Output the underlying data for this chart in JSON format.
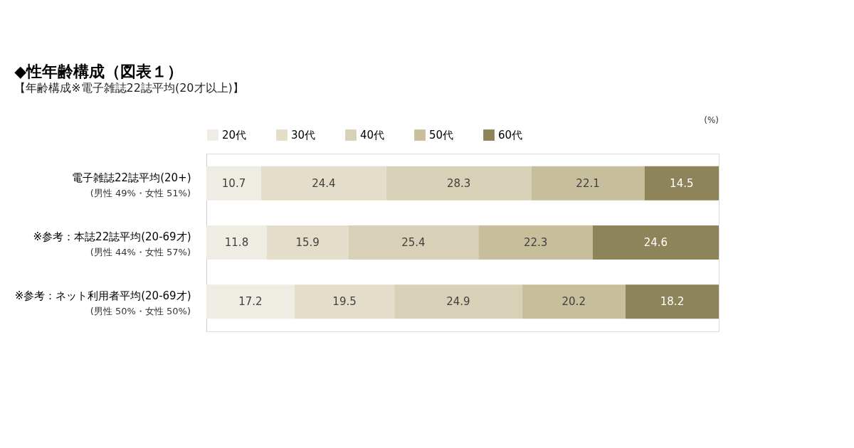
{
  "chart_data": {
    "type": "bar",
    "orientation": "horizontal",
    "stacked": true,
    "data_labels": true,
    "tick_labels": "y",
    "legend": "top",
    "title": "◆性年齢構成（図表１）",
    "subtitle": "【年齢構成※電子雑誌22誌平均(20才以上)】",
    "categories": [
      "電子雑誌22誌平均(20+)",
      "※参考：本誌22誌平均(20-69才)",
      "※参考：ネット利用者平均(20-69才)"
    ],
    "series": [
      {
        "name": "20代",
        "color": "#efece4",
        "values": [
          10.7,
          11.8,
          17.2
        ]
      },
      {
        "name": "30代",
        "color": "#e3ddca",
        "values": [
          24.4,
          15.9,
          19.5
        ]
      },
      {
        "name": "40代",
        "color": "#d8d1b8",
        "values": [
          28.3,
          25.4,
          24.9
        ]
      },
      {
        "name": "50代",
        "color": "#c7be9c",
        "values": [
          22.1,
          22.3,
          20.2
        ]
      },
      {
        "name": "60代",
        "color": "#8d8459",
        "values": [
          14.5,
          24.6,
          18.2
        ]
      }
    ],
    "annotations": [
      "(男性 49%・女性 51%)",
      "(男性 44%・女性 57%)",
      "(男性 50%・女性 50%)",
      "(%)"
    ]
  }
}
